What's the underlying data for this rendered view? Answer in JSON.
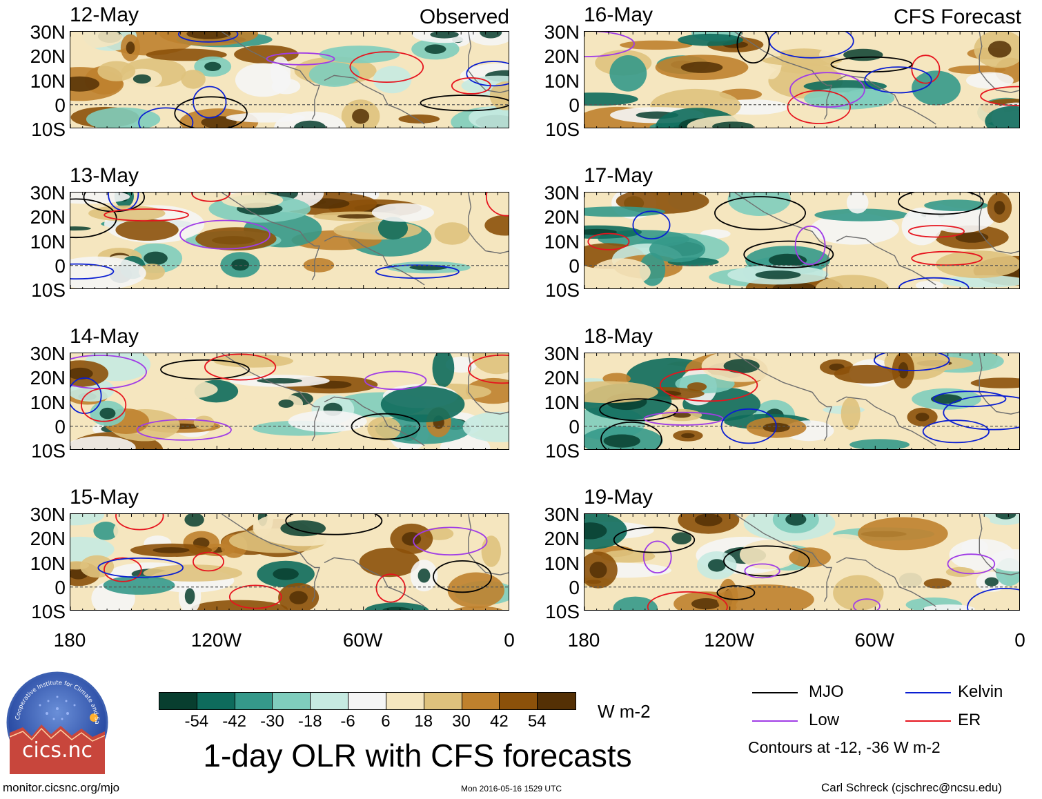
{
  "header": {
    "observed_label": "Observed",
    "forecast_label": "CFS Forecast"
  },
  "panels_observed": [
    {
      "date": "12-May"
    },
    {
      "date": "13-May"
    },
    {
      "date": "14-May"
    },
    {
      "date": "15-May"
    }
  ],
  "panels_forecast": [
    {
      "date": "16-May"
    },
    {
      "date": "17-May"
    },
    {
      "date": "18-May"
    },
    {
      "date": "19-May"
    }
  ],
  "lat_labels": [
    "30N",
    "20N",
    "10N",
    "0",
    "10S"
  ],
  "lon_labels": [
    "180",
    "120W",
    "60W",
    "0"
  ],
  "colorbar": {
    "colors": [
      "#083e2f",
      "#0e6b5c",
      "#35998a",
      "#7fcdbd",
      "#c6eae1",
      "#f5f5f5",
      "#f5e6bf",
      "#dfc27d",
      "#bf812d",
      "#8c510a",
      "#543005"
    ],
    "tick_labels": [
      "-54",
      "-42",
      "-30",
      "-18",
      "-6",
      "6",
      "18",
      "30",
      "42",
      "54"
    ],
    "units": "W m-2"
  },
  "title": "1-day OLR with CFS forecasts",
  "legend": {
    "items": [
      {
        "label": "MJO",
        "color": "#000000"
      },
      {
        "label": "Kelvin",
        "color": "#0a1ed2"
      },
      {
        "label": "Low",
        "color": "#a03ce6"
      },
      {
        "label": "ER",
        "color": "#e6141e"
      }
    ],
    "note": "Contours at -12, -36 W m-2"
  },
  "logo": {
    "text": "cics.nc",
    "ring_text": "Cooperative Institute for Climate and Satellites"
  },
  "footer": {
    "url": "monitor.cicsnc.org/mjo",
    "timestamp": "Mon 2016-05-16 1529 UTC",
    "author": "Carl Schreck (cjschrec@ncsu.edu)"
  }
}
